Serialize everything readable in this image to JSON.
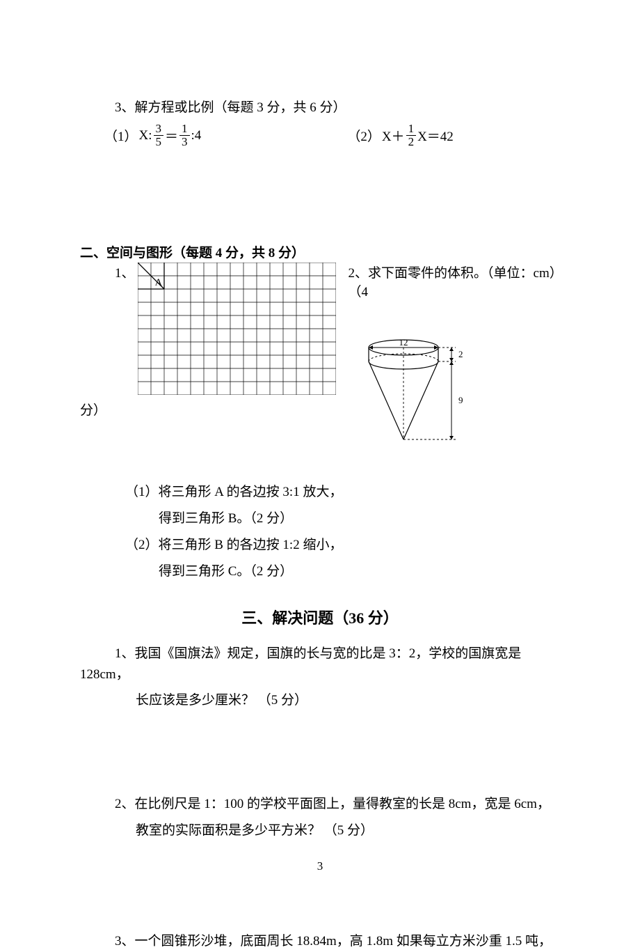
{
  "q3": {
    "title": "3、解方程或比例（每题 3 分，共 6 分）",
    "eq1_label": "（1）",
    "eq1_x": "X:",
    "eq1_n1": "3",
    "eq1_d1": "5",
    "eq1_eq": "＝",
    "eq1_n2": "1",
    "eq1_d2": "3",
    "eq1_tail": ":4",
    "eq2_label": "（2）",
    "eq2_lead": "X＋",
    "eq2_n": "1",
    "eq2_d": "2",
    "eq2_tail": "X＝42"
  },
  "sec2": {
    "header": "二、空间与图形（每题 4 分，共 8 分）",
    "q1": "1、",
    "q2": "2、求下面零件的体积。（单位：cm）（4",
    "q2_tail": "分）",
    "grid": {
      "cols": 15,
      "rows": 10,
      "cell": 19,
      "triangle_a": "A",
      "stroke": "#000000"
    },
    "cone": {
      "top_label": "12",
      "gap_label": "2",
      "height_label": "9"
    },
    "sub1": "（1）将三角形 A 的各边按 3:1 放大，",
    "sub1b": "得到三角形 B。（2 分）",
    "sub2": "（2）将三角形 B 的各边按 1:2 缩小，",
    "sub2b": "得到三角形 C。（2 分）"
  },
  "sec3": {
    "header": "三、解决问题（36 分）",
    "p1a": "1、我国《国旗法》规定，国旗的长与宽的比是 3：2，学校的国旗宽是",
    "p1b": "128cm，",
    "p1c": "长应该是多少厘米？ （5 分）",
    "p2a": "2、在比例尺是 1：100 的学校平面图上，量得教室的长是 8cm，宽是 6cm，",
    "p2b": "教室的实际面积是多少平方米？ （5 分）",
    "p3": "3、一个圆锥形沙堆，底面周长 18.84m，高 1.8m 如果每立方米沙重 1.5 吨，"
  },
  "pagenum": "3"
}
